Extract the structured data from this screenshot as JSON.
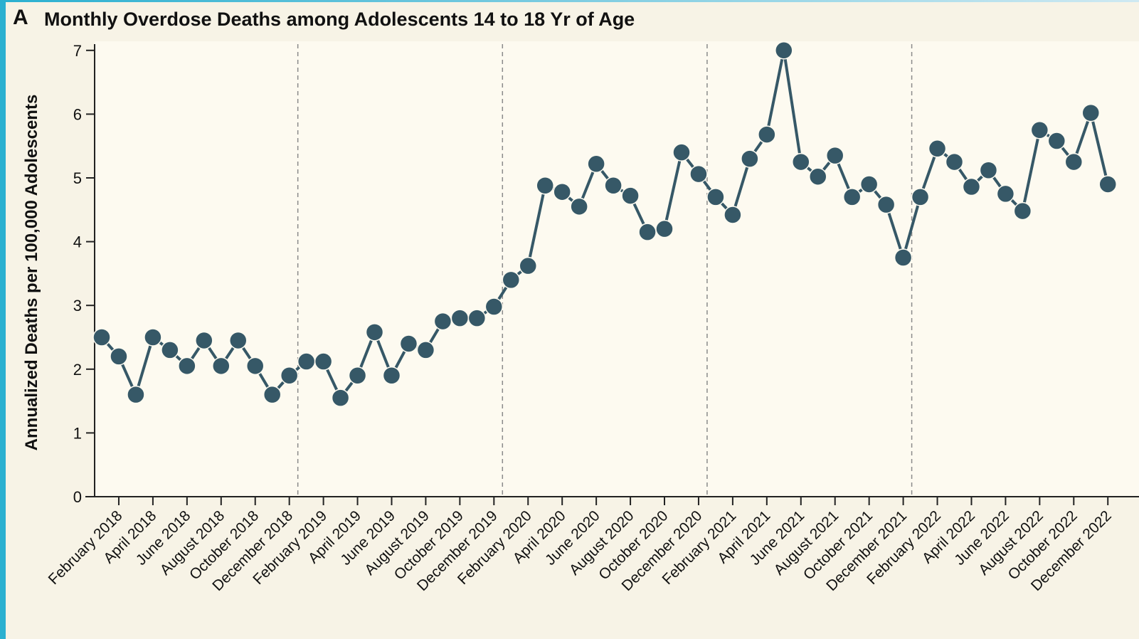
{
  "panel_label": "A",
  "colors": {
    "background": "#f7f3e6",
    "plot_area": "#fdfaf0",
    "series": "#365867",
    "accent_strip": "#2bb0d0"
  },
  "chart_data": {
    "type": "line",
    "title": "Monthly Overdose Deaths among Adolescents 14 to 18 Yr of Age",
    "xlabel": "",
    "ylabel": "Annualized Deaths per 100,000 Adolescents",
    "ylim": [
      0,
      7
    ],
    "yticks": [
      0,
      1,
      2,
      3,
      4,
      5,
      6,
      7
    ],
    "grid": false,
    "markers": "filled circles",
    "year_separators": [
      "between December 2018 and January 2019",
      "between December 2019 and January 2020",
      "between December 2020 and January 2021",
      "between December 2021 and January 2022"
    ],
    "xtick_labels": [
      "February 2018",
      "April 2018",
      "June 2018",
      "August 2018",
      "October 2018",
      "December 2018",
      "February 2019",
      "April 2019",
      "June 2019",
      "August 2019",
      "October 2019",
      "December 2019",
      "February 2020",
      "April 2020",
      "June 2020",
      "August 2020",
      "October 2020",
      "December 2020",
      "February 2021",
      "April 2021",
      "June 2021",
      "August 2021",
      "October 2021",
      "December 2021",
      "February 2022",
      "April 2022",
      "June 2022",
      "August 2022",
      "October 2022",
      "December 2022"
    ],
    "x": [
      "January 2018",
      "February 2018",
      "March 2018",
      "April 2018",
      "May 2018",
      "June 2018",
      "July 2018",
      "August 2018",
      "September 2018",
      "October 2018",
      "November 2018",
      "December 2018",
      "January 2019",
      "February 2019",
      "March 2019",
      "April 2019",
      "May 2019",
      "June 2019",
      "July 2019",
      "August 2019",
      "September 2019",
      "October 2019",
      "November 2019",
      "December 2019",
      "January 2020",
      "February 2020",
      "March 2020",
      "April 2020",
      "May 2020",
      "June 2020",
      "July 2020",
      "August 2020",
      "September 2020",
      "October 2020",
      "November 2020",
      "December 2020",
      "January 2021",
      "February 2021",
      "March 2021",
      "April 2021",
      "May 2021",
      "June 2021",
      "July 2021",
      "August 2021",
      "September 2021",
      "October 2021",
      "November 2021",
      "December 2021",
      "January 2022",
      "February 2022",
      "March 2022",
      "April 2022",
      "May 2022",
      "June 2022",
      "July 2022",
      "August 2022",
      "September 2022",
      "October 2022",
      "November 2022",
      "December 2022"
    ],
    "series": [
      {
        "values": [
          2.5,
          2.2,
          1.6,
          2.5,
          2.3,
          2.05,
          2.45,
          2.05,
          2.45,
          2.05,
          1.6,
          1.9,
          2.12,
          2.12,
          1.55,
          1.9,
          2.58,
          1.9,
          2.4,
          2.3,
          2.75,
          2.8,
          2.8,
          2.98,
          3.4,
          3.62,
          4.88,
          4.78,
          4.55,
          5.22,
          4.88,
          4.72,
          4.15,
          4.2,
          5.4,
          5.06,
          4.7,
          4.42,
          5.3,
          5.68,
          7.0,
          5.25,
          5.02,
          5.35,
          4.7,
          4.9,
          4.58,
          3.75,
          4.7,
          5.46,
          5.25,
          4.86,
          5.12,
          4.75,
          4.48,
          5.75,
          5.58,
          5.25,
          6.02,
          4.9
        ]
      }
    ]
  }
}
